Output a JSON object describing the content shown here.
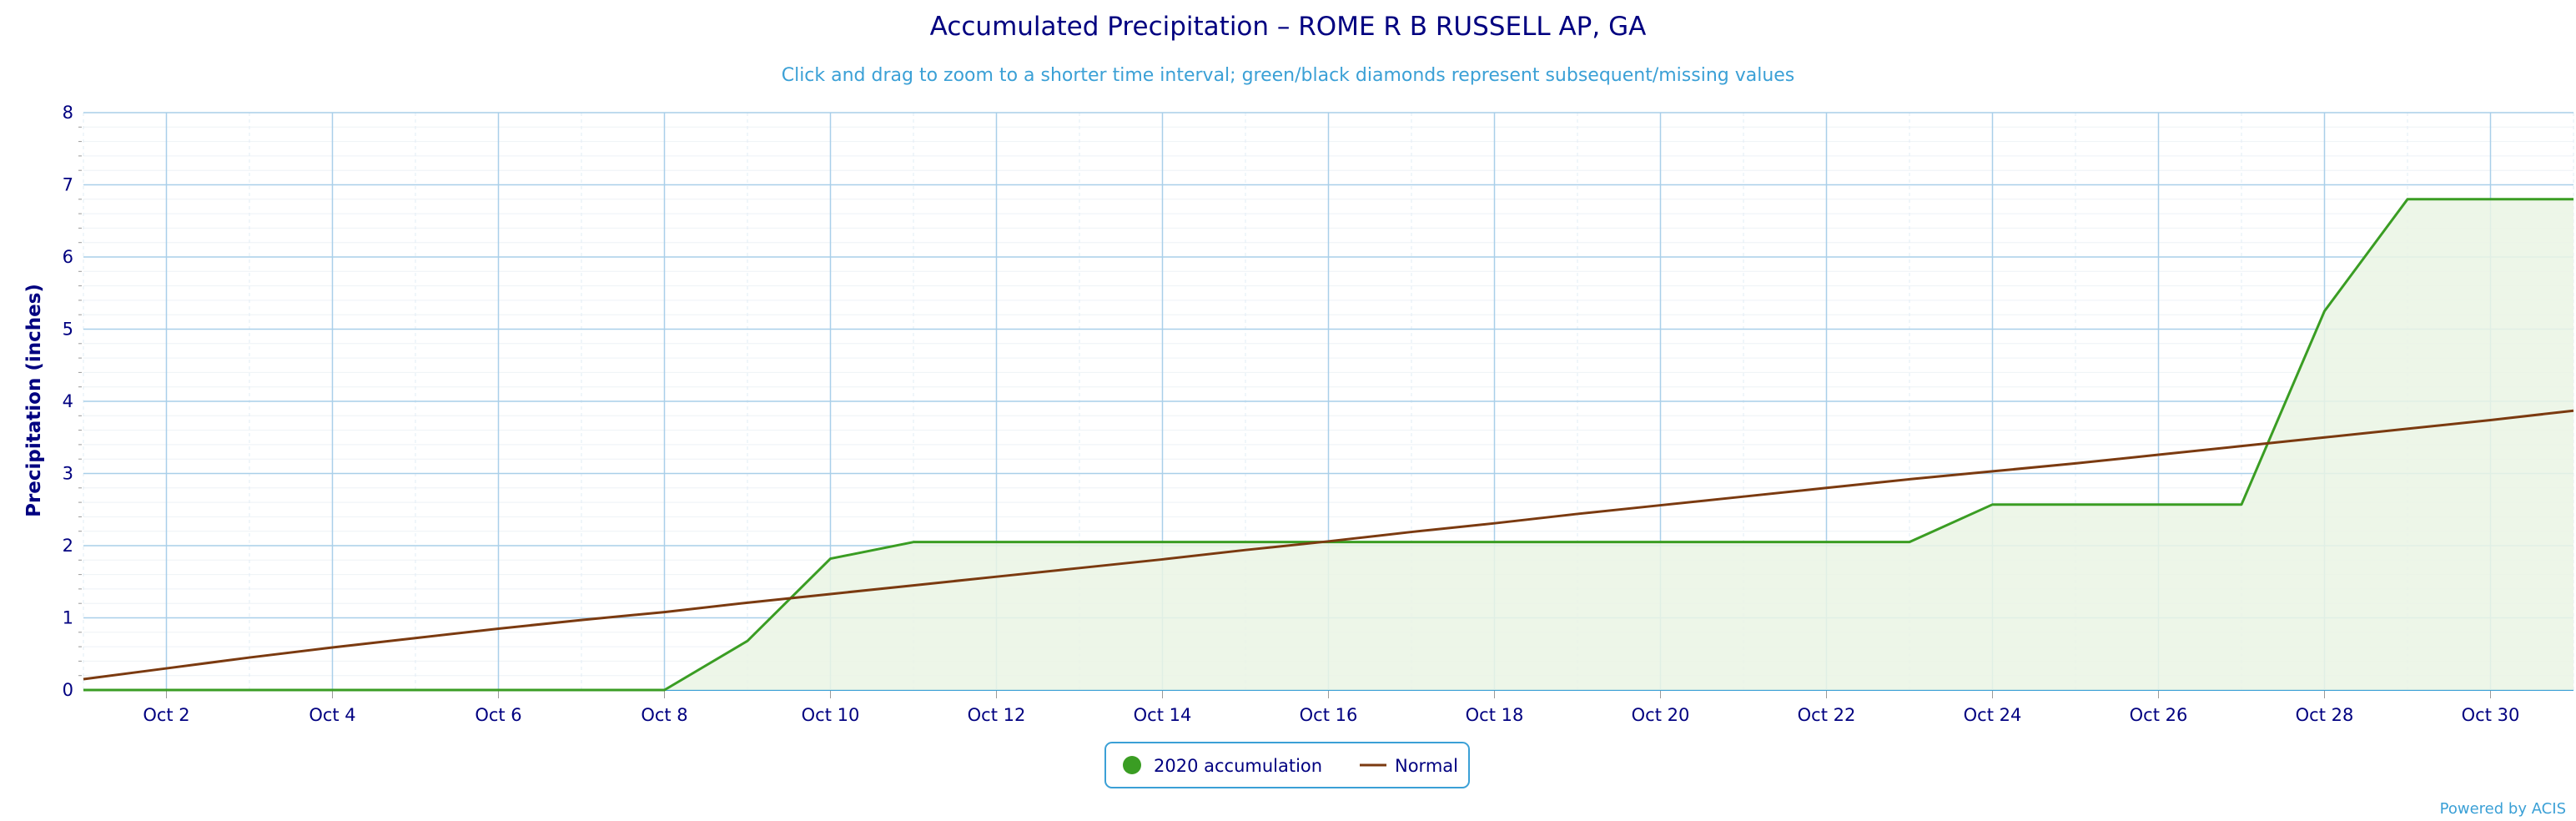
{
  "chart_data": {
    "type": "area",
    "title": "Accumulated Precipitation – ROME R B RUSSELL AP, GA",
    "subtitle": "Click and drag to zoom to a shorter time interval; green/black diamonds represent subsequent/missing values",
    "ylabel": "Precipitation (inches)",
    "xlabel": "",
    "ylim": [
      0,
      8
    ],
    "xlim": [
      1,
      31
    ],
    "yticks": [
      "0",
      "1",
      "2",
      "3",
      "4",
      "5",
      "6",
      "7",
      "8"
    ],
    "xticks": [
      "Oct 2",
      "Oct 4",
      "Oct 6",
      "Oct 8",
      "Oct 10",
      "Oct 12",
      "Oct 14",
      "Oct 16",
      "Oct 18",
      "Oct 20",
      "Oct 22",
      "Oct 24",
      "Oct 26",
      "Oct 28",
      "Oct 30"
    ],
    "grid": true,
    "legend_position": "bottom-center",
    "x": [
      1,
      2,
      3,
      4,
      5,
      6,
      7,
      8,
      9,
      10,
      11,
      12,
      13,
      14,
      15,
      16,
      17,
      18,
      19,
      20,
      21,
      22,
      23,
      24,
      25,
      26,
      27,
      28,
      29,
      30,
      31
    ],
    "series": [
      {
        "name": "2020 accumulation",
        "color": "#3a9d23",
        "values": [
          0,
          0,
          0,
          0,
          0,
          0,
          0,
          0,
          0.68,
          1.82,
          2.05,
          2.05,
          2.05,
          2.05,
          2.05,
          2.05,
          2.05,
          2.05,
          2.05,
          2.05,
          2.05,
          2.05,
          2.05,
          2.57,
          2.57,
          2.57,
          2.57,
          5.25,
          6.8,
          6.8,
          6.8
        ]
      },
      {
        "name": "Normal",
        "color": "#7b3a10",
        "values": [
          0.15,
          0.3,
          0.45,
          0.59,
          0.72,
          0.85,
          0.97,
          1.08,
          1.21,
          1.33,
          1.45,
          1.57,
          1.69,
          1.81,
          1.94,
          2.06,
          2.19,
          2.31,
          2.44,
          2.56,
          2.68,
          2.8,
          2.92,
          3.03,
          3.14,
          3.26,
          3.38,
          3.5,
          3.62,
          3.74,
          3.87
        ]
      }
    ]
  },
  "credit": "Powered by ACIS",
  "colors": {
    "accumulation_fill": "#eaf4e4",
    "grid": "#a9cfe9",
    "axis_text": "#000080"
  }
}
